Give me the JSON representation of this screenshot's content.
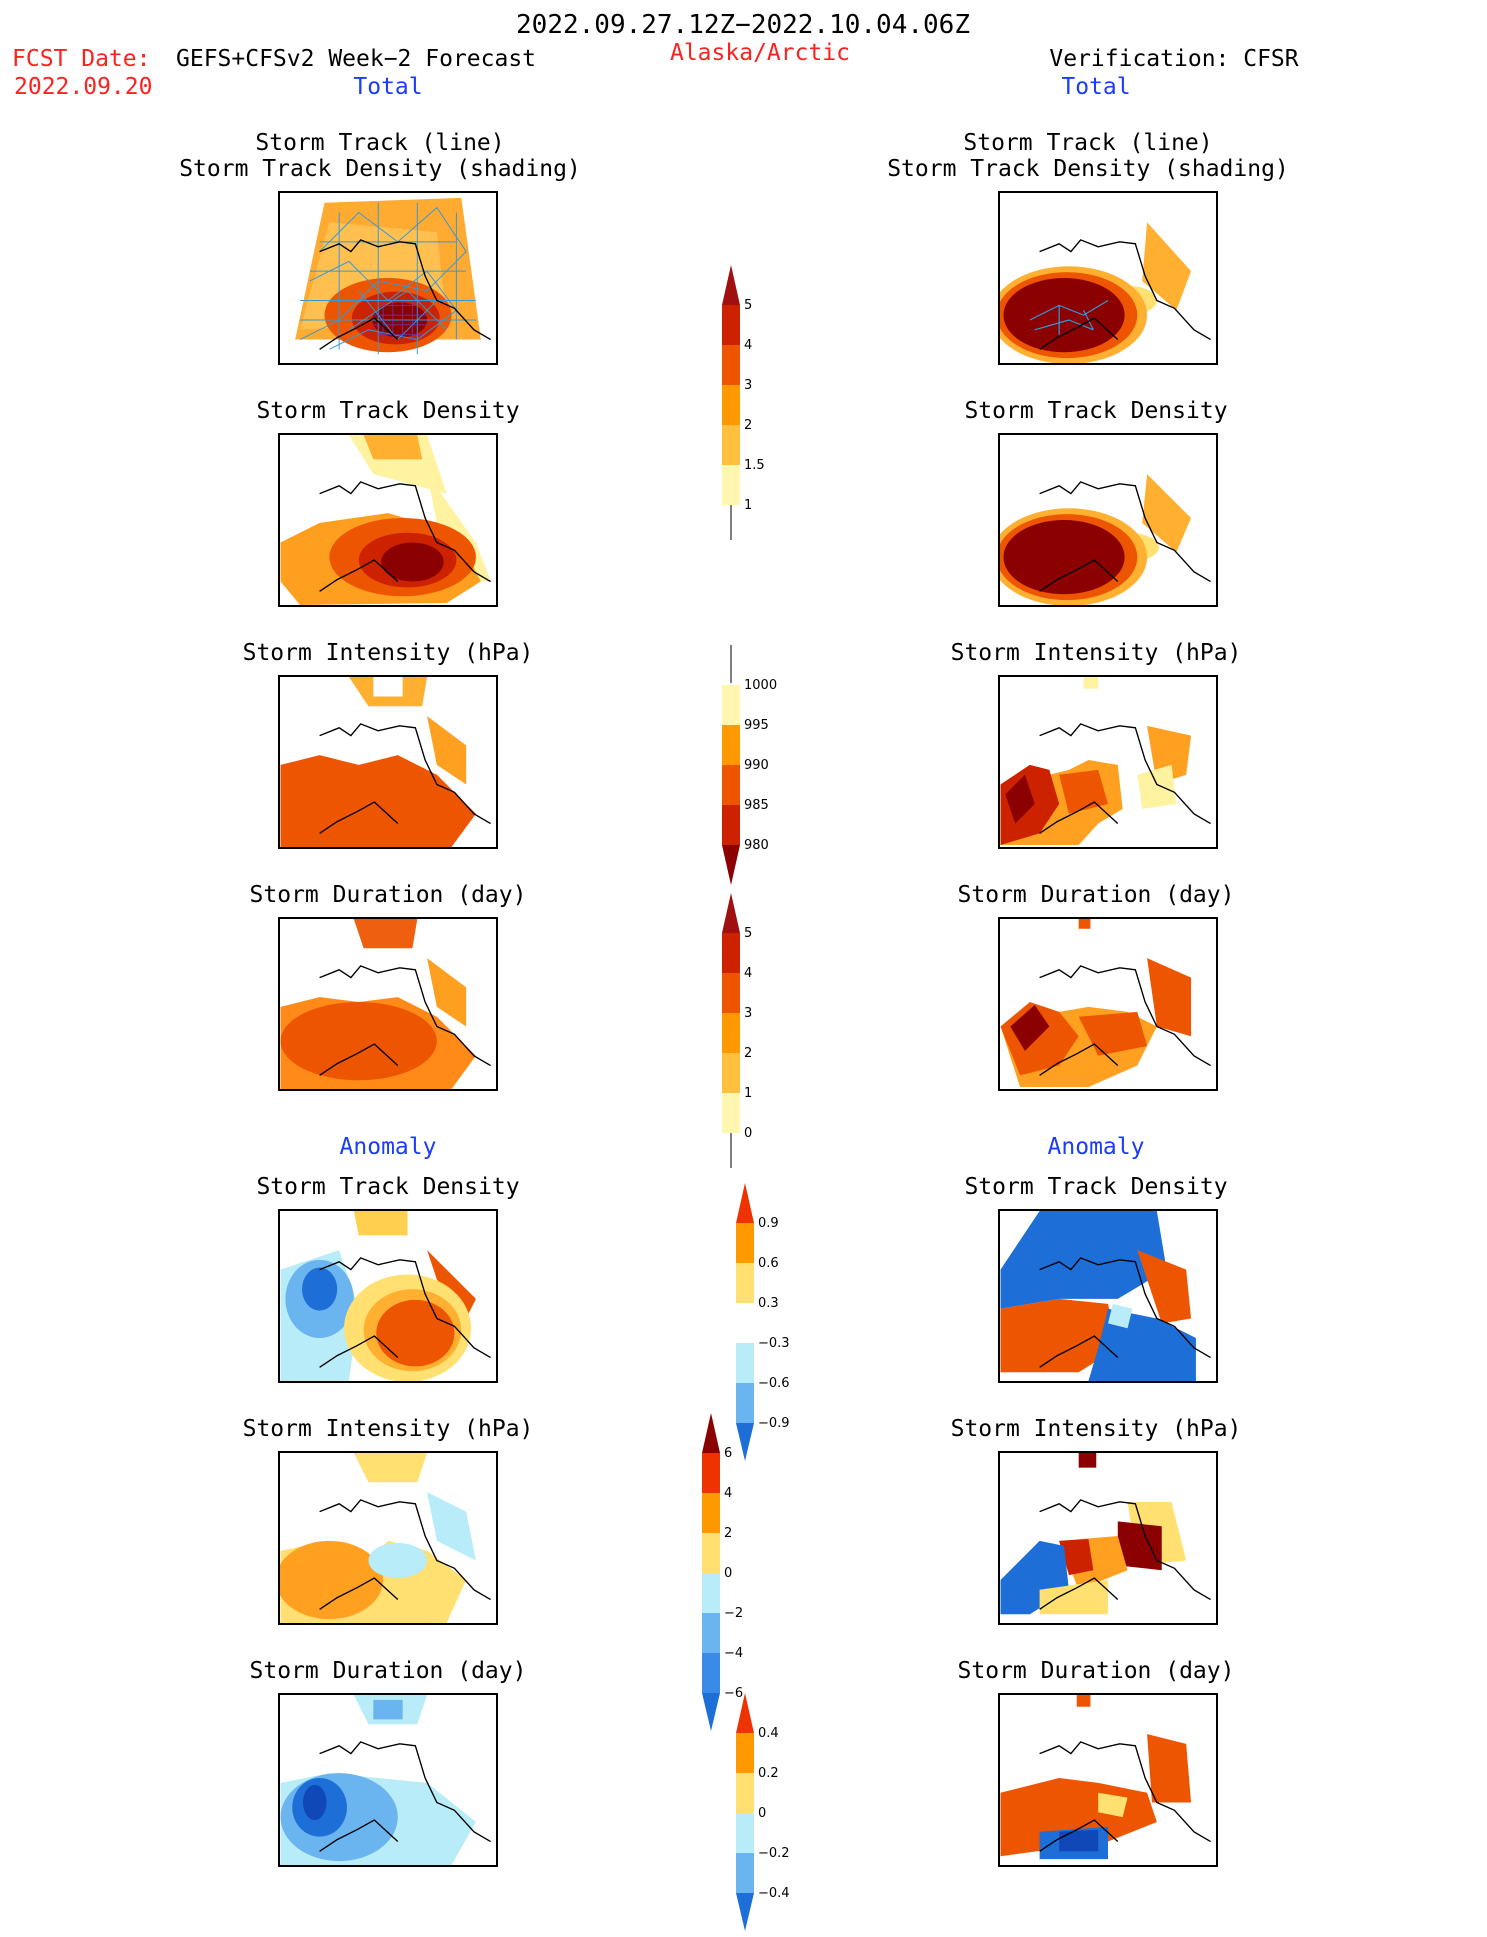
{
  "header": {
    "date_range": "2022.09.27.12Z−2022.10.04.06Z",
    "fcst_label": "FCST Date:",
    "fcst_model": "GEFS+CFSv2 Week−2 Forecast",
    "fcst_date": "2022.09.20",
    "region": "Alaska/Arctic",
    "verification": "Verification: CFSR"
  },
  "sections": {
    "total_left": "Total",
    "total_right": "Total",
    "anomaly_left": "Anomaly",
    "anomaly_right": "Anomaly"
  },
  "panel_titles": {
    "track_line": "Storm Track (line)",
    "track_shading": "Storm Track Density (shading)",
    "track_density": "Storm Track Density",
    "intensity": "Storm Intensity (hPa)",
    "duration": "Storm Duration (day)"
  },
  "colorbars": {
    "density": [
      "5",
      "4",
      "3",
      "2",
      "1.5",
      "1"
    ],
    "intensity": [
      "1000",
      "995",
      "990",
      "985",
      "980"
    ],
    "duration": [
      "5",
      "4",
      "3",
      "2",
      "1",
      "0"
    ],
    "density_anom": [
      "0.9",
      "0.6",
      "0.3",
      "−0.3",
      "−0.6",
      "−0.9"
    ],
    "intensity_anom": [
      "6",
      "4",
      "2",
      "0",
      "−2",
      "−4",
      "−6"
    ],
    "duration_anom": [
      "0.4",
      "0.2",
      "0",
      "−0.2",
      "−0.4"
    ]
  },
  "colors": {
    "title_red": "#ff2020",
    "section_blue": "#1a3cff",
    "darkred": "#8b0000",
    "red": "#cc2200",
    "orange_red": "#ee5500",
    "orange": "#ff9900",
    "light_orange": "#ffc040",
    "pale_yellow": "#fff6b0",
    "light_blue": "#b8ecf8",
    "mid_blue": "#6ab4f0",
    "blue": "#1e6ed8",
    "dark_blue": "#1048b8",
    "track_line": "#3399dd"
  }
}
